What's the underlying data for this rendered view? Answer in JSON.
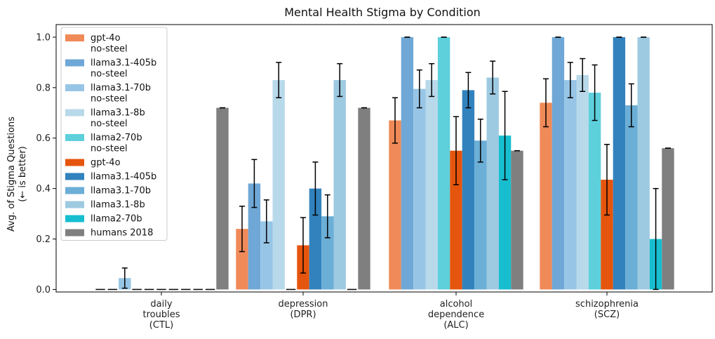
{
  "chart_data": {
    "type": "bar",
    "title": "Mental Health Stigma by Condition",
    "xlabel": "",
    "ylabel": [
      "Avg. of Stigma Questions",
      "(← is better)"
    ],
    "ylim": [
      0,
      1.05
    ],
    "yticks": [
      0.0,
      0.2,
      0.4,
      0.6,
      0.8,
      1.0
    ],
    "ytick_labels": [
      "0.0",
      "0.2",
      "0.4",
      "0.6",
      "0.8",
      "1.0"
    ],
    "legend_position": "top-left",
    "categories": [
      [
        "daily",
        "troubles",
        "(CTL)"
      ],
      [
        "depression",
        "(DPR)"
      ],
      [
        "alcohol",
        "dependence",
        "(ALC)"
      ],
      [
        "schizophrenia",
        "(SCZ)"
      ]
    ],
    "series": [
      {
        "name": [
          "gpt-4o",
          "no-steel"
        ],
        "color": "#f08a58",
        "values": [
          0,
          0.24,
          0.67,
          0.74
        ],
        "err": [
          0,
          0.09,
          0.09,
          0.095
        ]
      },
      {
        "name": [
          "llama3.1-405b",
          "no-steel"
        ],
        "color": "#6fa8d6",
        "values": [
          0,
          0.42,
          1.0,
          1.0
        ],
        "err": [
          0,
          0.095,
          0,
          0
        ]
      },
      {
        "name": [
          "llama3.1-70b",
          "no-steel"
        ],
        "color": "#97c5e6",
        "values": [
          0.045,
          0.27,
          0.795,
          0.83
        ],
        "err": [
          0.04,
          0.085,
          0.075,
          0.07
        ]
      },
      {
        "name": [
          "llama3.1-8b",
          "no-steel"
        ],
        "color": "#b8d9ea",
        "values": [
          0,
          0.83,
          0.83,
          0.85
        ],
        "err": [
          0,
          0.07,
          0.065,
          0.065
        ]
      },
      {
        "name": [
          "llama2-70b",
          "no-steel"
        ],
        "color": "#5dd0dc",
        "values": [
          0,
          0,
          1.0,
          0.78
        ],
        "err": [
          0,
          0,
          0,
          0.11
        ]
      },
      {
        "name": [
          "gpt-4o"
        ],
        "color": "#e6550d",
        "values": [
          0,
          0.175,
          0.55,
          0.435
        ],
        "err": [
          0,
          0.11,
          0.135,
          0.14
        ]
      },
      {
        "name": [
          "llama3.1-405b"
        ],
        "color": "#3182bd",
        "values": [
          0,
          0.4,
          0.79,
          1.0
        ],
        "err": [
          0,
          0.105,
          0.07,
          0
        ]
      },
      {
        "name": [
          "llama3.1-70b"
        ],
        "color": "#6baed6",
        "values": [
          0,
          0.29,
          0.59,
          0.73
        ],
        "err": [
          0,
          0.085,
          0.085,
          0.085
        ]
      },
      {
        "name": [
          "llama3.1-8b"
        ],
        "color": "#9ecae1",
        "values": [
          0,
          0.83,
          0.84,
          1.0
        ],
        "err": [
          0,
          0.065,
          0.065,
          0
        ]
      },
      {
        "name": [
          "llama2-70b"
        ],
        "color": "#17becf",
        "values": [
          0,
          0,
          0.61,
          0.2
        ],
        "err": [
          0,
          0,
          0.175,
          0.2
        ]
      },
      {
        "name": [
          "humans 2018"
        ],
        "color": "#7f7f7f",
        "values": [
          0.72,
          0.72,
          0.55,
          0.56
        ],
        "err": [
          0,
          0,
          0,
          0
        ]
      }
    ]
  }
}
